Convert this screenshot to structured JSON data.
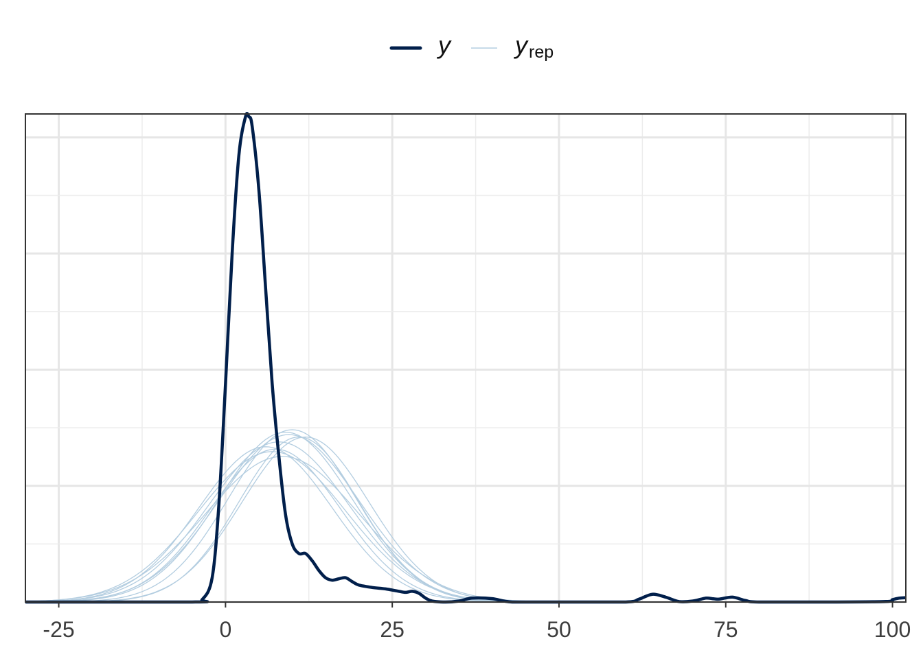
{
  "chart_data": {
    "type": "line",
    "title": "",
    "xlabel": "",
    "ylabel": "",
    "xlim": [
      -30,
      102
    ],
    "ylim": [
      0,
      1
    ],
    "x_ticks": [
      -25,
      0,
      25,
      50,
      75,
      100
    ],
    "x_tick_labels": [
      "-25",
      "0",
      "25",
      "50",
      "75",
      "100"
    ],
    "y_tick_labels": [],
    "grid": true,
    "legend_position": "top",
    "legend": [
      {
        "label": "y",
        "subscript": "",
        "color": "#011f4b",
        "style": "thick"
      },
      {
        "label": "y",
        "subscript": "rep",
        "color": "#b3cde0",
        "style": "thin"
      }
    ],
    "series": [
      {
        "name": "y",
        "color": "#011f4b",
        "x": [
          -30,
          -5,
          -3.5,
          -2,
          -1,
          0,
          1,
          2,
          3,
          3.5,
          4,
          5,
          6,
          7,
          8,
          9,
          10,
          11,
          12,
          13,
          14,
          15,
          16,
          17,
          18,
          19,
          20,
          22,
          24,
          26,
          27,
          28,
          29,
          30,
          31,
          33,
          35,
          37,
          40,
          43,
          50,
          60,
          62,
          64,
          66,
          68,
          70,
          72,
          73,
          74,
          76,
          78,
          80,
          90,
          99,
          100,
          101,
          102
        ],
        "y": [
          0,
          0,
          0.005,
          0.05,
          0.2,
          0.45,
          0.72,
          0.92,
          1.0,
          1.0,
          0.98,
          0.85,
          0.65,
          0.45,
          0.3,
          0.18,
          0.12,
          0.1,
          0.1,
          0.085,
          0.065,
          0.05,
          0.045,
          0.048,
          0.05,
          0.042,
          0.035,
          0.03,
          0.027,
          0.022,
          0.02,
          0.022,
          0.018,
          0.008,
          0.002,
          0.0,
          0.002,
          0.008,
          0.007,
          0.0,
          0.0,
          0.0,
          0.006,
          0.016,
          0.01,
          0.001,
          0.002,
          0.008,
          0.007,
          0.006,
          0.01,
          0.003,
          0.0,
          0.0,
          0.001,
          0.005,
          0.008,
          0.009
        ]
      }
    ],
    "rep_series": [
      {
        "mean": 7.0,
        "sd": 11.0,
        "peak": 0.31
      },
      {
        "mean": 8.0,
        "sd": 10.5,
        "peak": 0.33
      },
      {
        "mean": 9.0,
        "sd": 10.0,
        "peak": 0.35
      },
      {
        "mean": 10.0,
        "sd": 9.5,
        "peak": 0.355
      },
      {
        "mean": 6.0,
        "sd": 10.0,
        "peak": 0.32
      },
      {
        "mean": 11.0,
        "sd": 9.0,
        "peak": 0.34
      },
      {
        "mean": 8.5,
        "sd": 11.5,
        "peak": 0.3
      },
      {
        "mean": 9.5,
        "sd": 10.5,
        "peak": 0.345
      },
      {
        "mean": 7.5,
        "sd": 9.8,
        "peak": 0.315
      },
      {
        "mean": 12.0,
        "sd": 9.5,
        "peak": 0.34
      }
    ]
  }
}
